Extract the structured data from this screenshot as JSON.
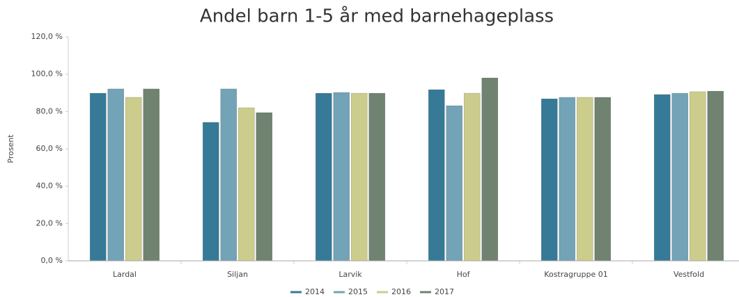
{
  "chart_data": {
    "type": "bar",
    "title": "Andel barn 1-5 år med barnehageplass",
    "ylabel": "Prosent",
    "categories": [
      "Lardal",
      "Siljan",
      "Larvik",
      "Hof",
      "Kostragruppe 01",
      "Vestfold"
    ],
    "series": [
      {
        "name": "2014",
        "color": "#367a98",
        "values": [
          89.8,
          74.2,
          89.8,
          91.7,
          86.8,
          89.1
        ]
      },
      {
        "name": "2015",
        "color": "#72a3b6",
        "values": [
          92.1,
          92.1,
          90.2,
          83.1,
          87.6,
          89.8
        ]
      },
      {
        "name": "2016",
        "color": "#cccc8c",
        "values": [
          87.6,
          82.0,
          89.8,
          89.8,
          87.6,
          90.6
        ]
      },
      {
        "name": "2017",
        "color": "#708270",
        "values": [
          92.1,
          79.4,
          89.8,
          98.0,
          87.6,
          90.9
        ]
      }
    ],
    "ylim": [
      0,
      120
    ],
    "yticks": [
      {
        "value": 0,
        "label": "0,0 %"
      },
      {
        "value": 20,
        "label": "20,0 %"
      },
      {
        "value": 40,
        "label": "40,0 %"
      },
      {
        "value": 60,
        "label": "60,0 %"
      },
      {
        "value": 80,
        "label": "80,0 %"
      },
      {
        "value": 100,
        "label": "100,0 %"
      },
      {
        "value": 120,
        "label": "120,0 %"
      }
    ],
    "grid": false,
    "legend": "bottom"
  }
}
